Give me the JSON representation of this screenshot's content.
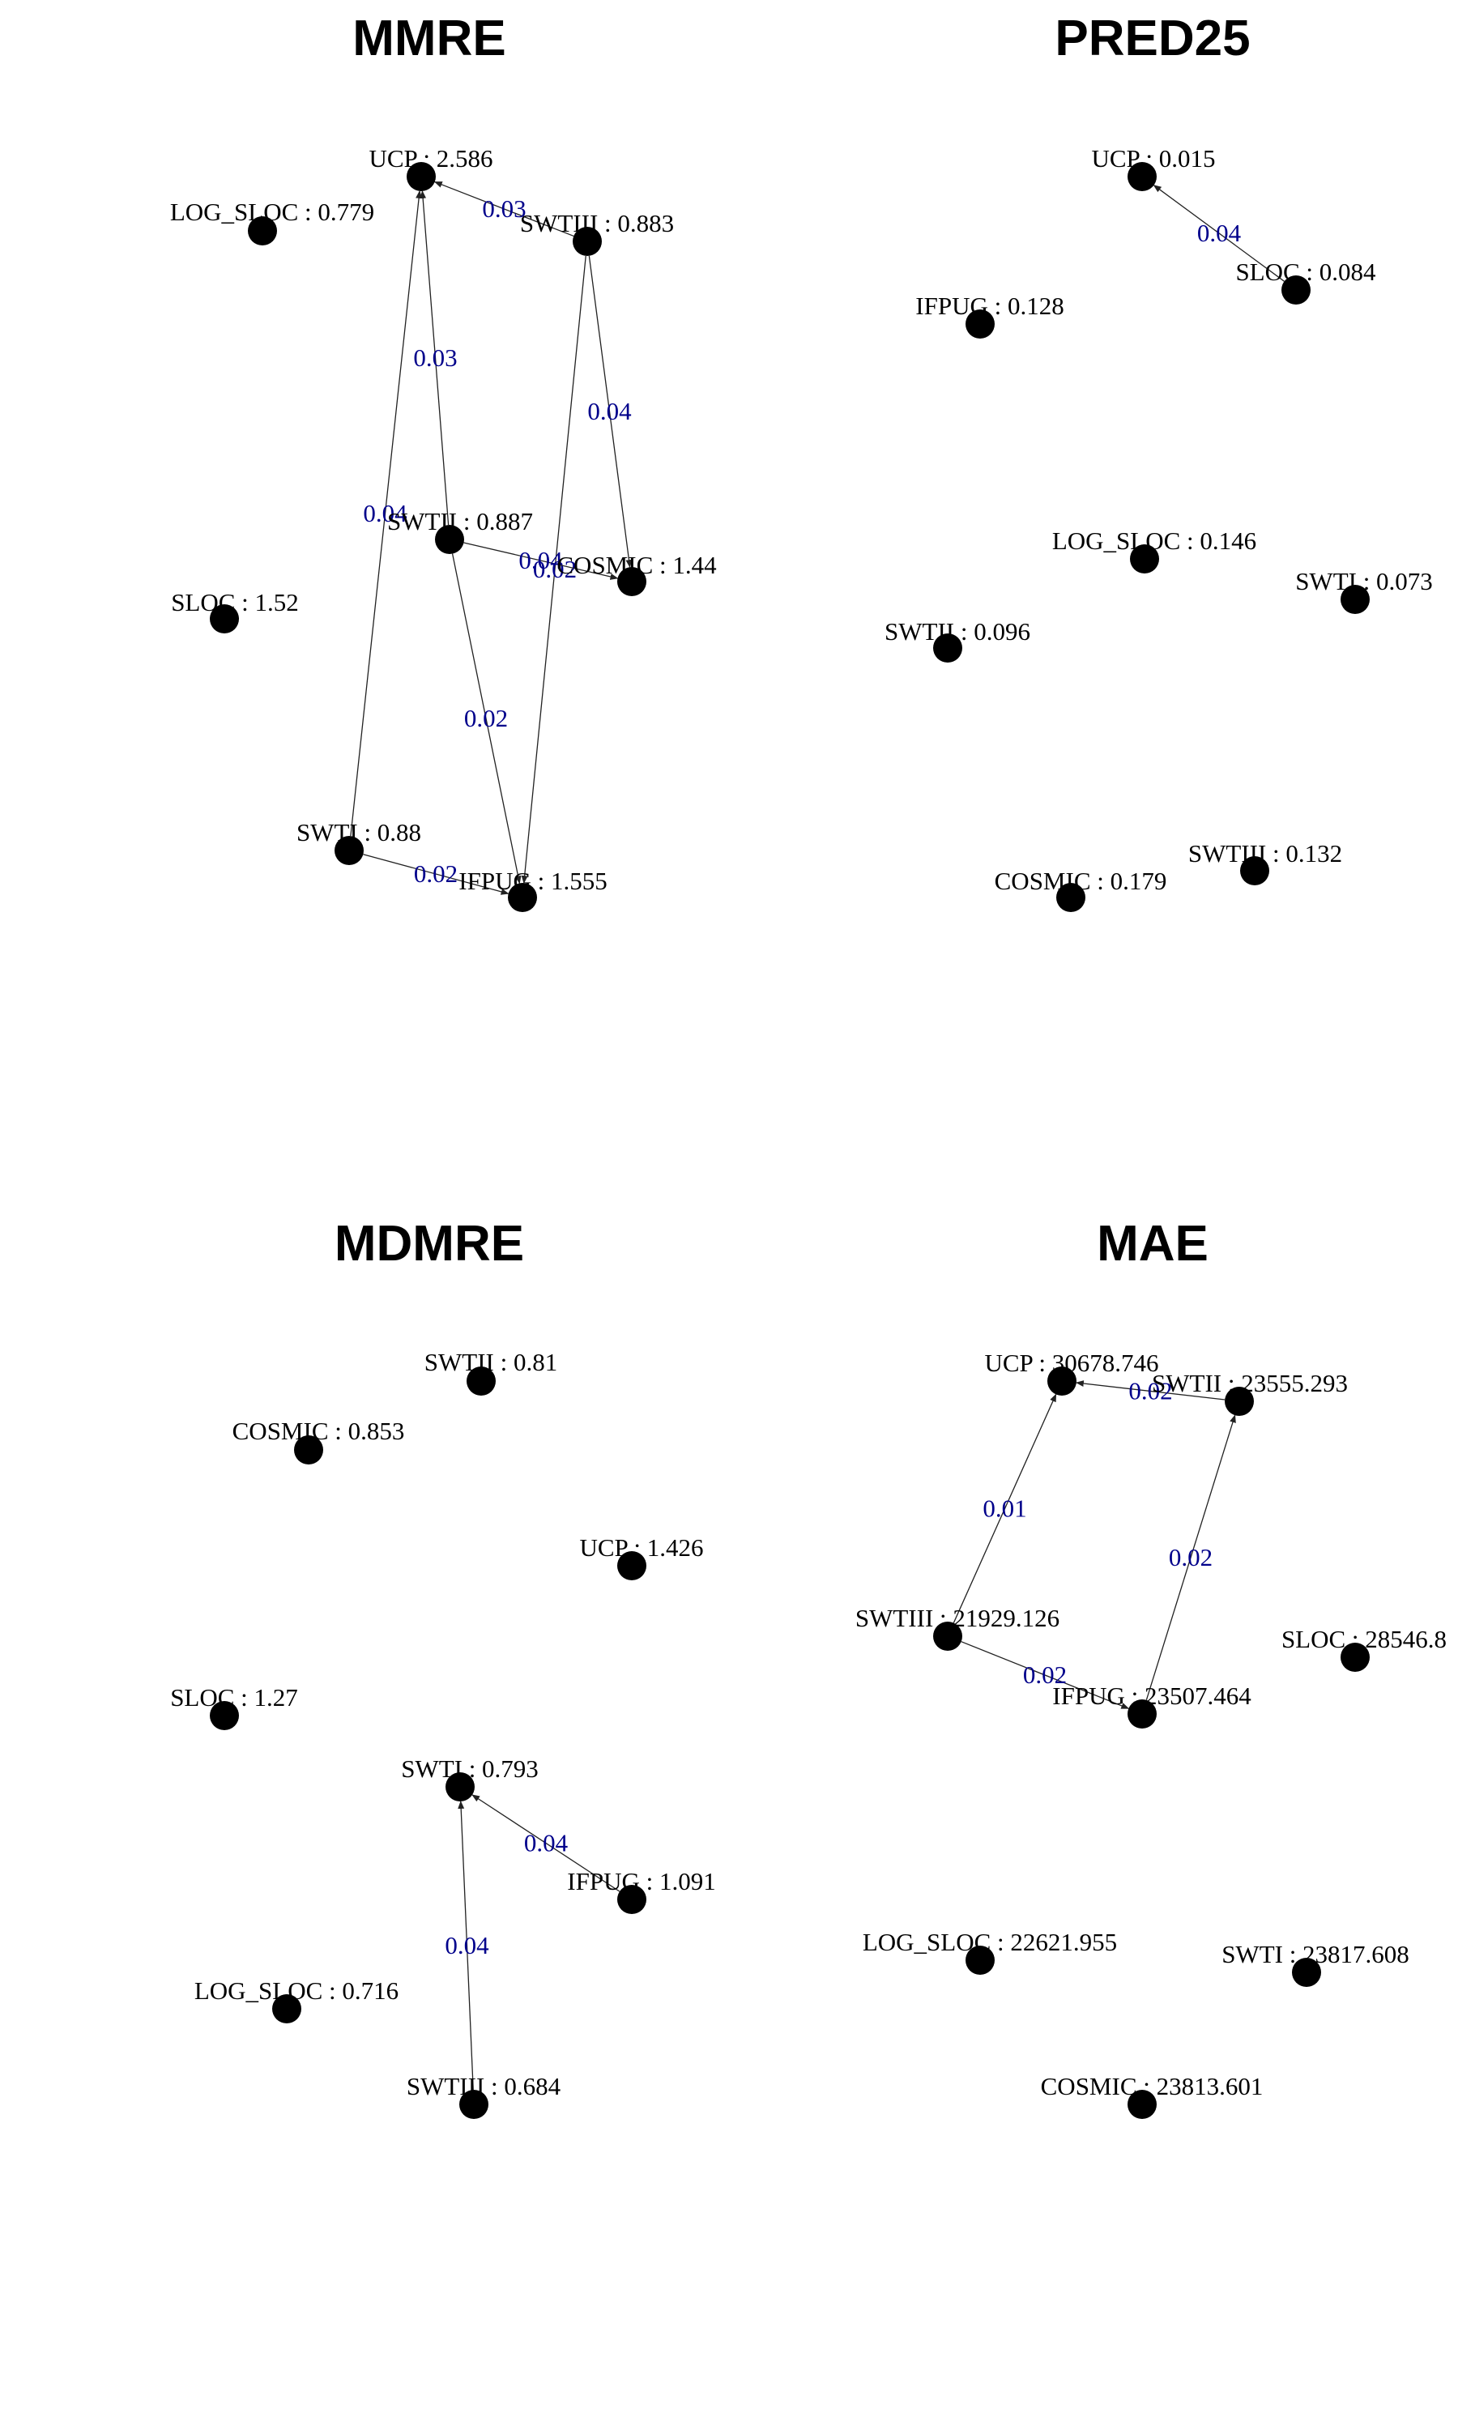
{
  "colors": {
    "background": "#ffffff",
    "node": "#000000",
    "edge": "#222222",
    "edge_label": "#00008b",
    "text": "#000000"
  },
  "panels": [
    {
      "title": "MMRE",
      "nodes": [
        {
          "id": "UCP",
          "label": "UCP : 2.586"
        },
        {
          "id": "LOG_SLOC",
          "label": "LOG_SLOC : 0.779"
        },
        {
          "id": "SWTIII",
          "label": "SWTIII : 0.883"
        },
        {
          "id": "SWTII",
          "label": "SWTII : 0.887"
        },
        {
          "id": "COSMIC",
          "label": "COSMIC : 1.44"
        },
        {
          "id": "SLOC",
          "label": "SLOC : 1.52"
        },
        {
          "id": "SWTI",
          "label": "SWTI : 0.88"
        },
        {
          "id": "IFPUG",
          "label": "IFPUG : 1.555"
        }
      ],
      "edges": [
        {
          "from": "SWTIII",
          "to": "UCP",
          "label": "0.03"
        },
        {
          "from": "SWTII",
          "to": "UCP",
          "label": "0.03"
        },
        {
          "from": "SWTI",
          "to": "UCP",
          "label": "0.04"
        },
        {
          "from": "SWTIII",
          "to": "COSMIC",
          "label": "0.04"
        },
        {
          "from": "SWTIII",
          "to": "IFPUG",
          "label": "0.02"
        },
        {
          "from": "SWTII",
          "to": "COSMIC",
          "label": "0.04"
        },
        {
          "from": "SWTII",
          "to": "IFPUG",
          "label": "0.02"
        },
        {
          "from": "SWTI",
          "to": "IFPUG",
          "label": "0.02"
        }
      ]
    },
    {
      "title": "PRED25",
      "nodes": [
        {
          "id": "UCP",
          "label": "UCP : 0.015"
        },
        {
          "id": "SLOC",
          "label": "SLOC : 0.084"
        },
        {
          "id": "IFPUG",
          "label": "IFPUG : 0.128"
        },
        {
          "id": "LOG_SLOC",
          "label": "LOG_SLOC : 0.146"
        },
        {
          "id": "SWTI",
          "label": "SWTI : 0.073"
        },
        {
          "id": "SWTII",
          "label": "SWTII : 0.096"
        },
        {
          "id": "SWTIII",
          "label": "SWTIII : 0.132"
        },
        {
          "id": "COSMIC",
          "label": "COSMIC : 0.179"
        }
      ],
      "edges": [
        {
          "from": "SLOC",
          "to": "UCP",
          "label": "0.04"
        }
      ]
    },
    {
      "title": "MDMRE",
      "nodes": [
        {
          "id": "SWTII",
          "label": "SWTII : 0.81"
        },
        {
          "id": "COSMIC",
          "label": "COSMIC : 0.853"
        },
        {
          "id": "UCP",
          "label": "UCP : 1.426"
        },
        {
          "id": "SLOC",
          "label": "SLOC : 1.27"
        },
        {
          "id": "SWTI",
          "label": "SWTI : 0.793"
        },
        {
          "id": "IFPUG",
          "label": "IFPUG : 1.091"
        },
        {
          "id": "LOG_SLOC",
          "label": "LOG_SLOC : 0.716"
        },
        {
          "id": "SWTIII",
          "label": "SWTIII : 0.684"
        }
      ],
      "edges": [
        {
          "from": "IFPUG",
          "to": "SWTI",
          "label": "0.04"
        },
        {
          "from": "SWTIII",
          "to": "SWTI",
          "label": "0.04"
        }
      ]
    },
    {
      "title": "MAE",
      "nodes": [
        {
          "id": "UCP",
          "label": "UCP : 30678.746"
        },
        {
          "id": "SWTII",
          "label": "SWTII : 23555.293"
        },
        {
          "id": "SWTIII",
          "label": "SWTIII : 21929.126"
        },
        {
          "id": "SLOC",
          "label": "SLOC : 28546.8"
        },
        {
          "id": "IFPUG",
          "label": "IFPUG : 23507.464"
        },
        {
          "id": "LOG_SLOC",
          "label": "LOG_SLOC : 22621.955"
        },
        {
          "id": "SWTI",
          "label": "SWTI : 23817.608"
        },
        {
          "id": "COSMIC",
          "label": "COSMIC : 23813.601"
        }
      ],
      "edges": [
        {
          "from": "SWTII",
          "to": "UCP",
          "label": "0.02"
        },
        {
          "from": "SWTIII",
          "to": "UCP",
          "label": "0.01"
        },
        {
          "from": "IFPUG",
          "to": "SWTII",
          "label": "0.02"
        },
        {
          "from": "SWTIII",
          "to": "IFPUG",
          "label": "0.02"
        }
      ]
    }
  ]
}
